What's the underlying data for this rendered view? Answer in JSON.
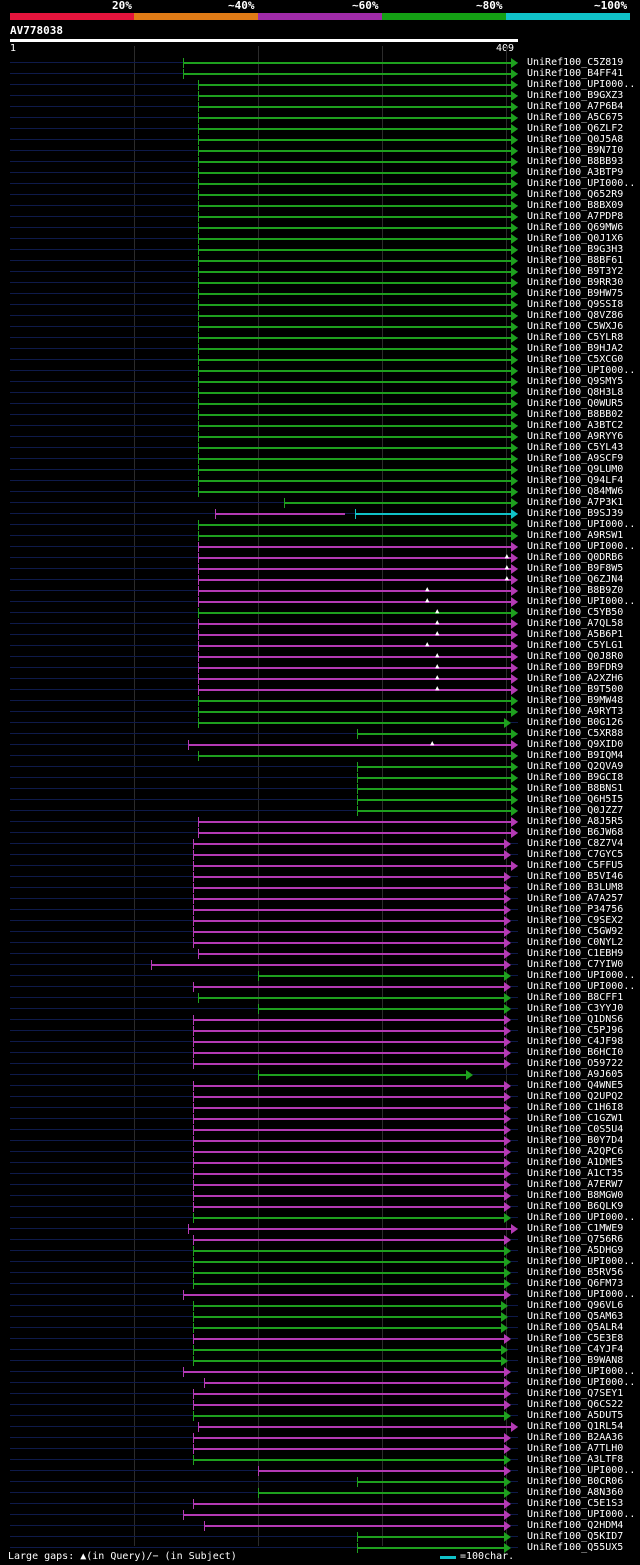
{
  "scale": {
    "labels": [
      "20%",
      "~40%",
      "~60%",
      "~80%",
      "~100%"
    ],
    "colors": [
      "#e4143c",
      "#e07b16",
      "#a02ba8",
      "#14a014",
      "#10c2c8"
    ]
  },
  "query": {
    "id": "AV778038",
    "start": "1",
    "end": "409",
    "length": 409
  },
  "colors": {
    "green": "#1ea01e",
    "magenta": "#b43ab4",
    "cyan": "#10c2c8",
    "background_line": "#0e1a4a"
  },
  "hits": [
    {
      "label": "UniRef100_C5Z819",
      "c": "g",
      "s": 140,
      "e": 406
    },
    {
      "label": "UniRef100_B4FF41",
      "c": "g",
      "s": 140,
      "e": 406
    },
    {
      "label": "UniRef100_UPI000..",
      "c": "g",
      "s": 152,
      "e": 406
    },
    {
      "label": "UniRef100_B9GXZ3",
      "c": "g",
      "s": 152,
      "e": 406
    },
    {
      "label": "UniRef100_A7P6B4",
      "c": "g",
      "s": 152,
      "e": 406
    },
    {
      "label": "UniRef100_A5C675",
      "c": "g",
      "s": 152,
      "e": 406
    },
    {
      "label": "UniRef100_Q6ZLF2",
      "c": "g",
      "s": 152,
      "e": 406
    },
    {
      "label": "UniRef100_Q0J5A8",
      "c": "g",
      "s": 152,
      "e": 406
    },
    {
      "label": "UniRef100_B9N7I0",
      "c": "g",
      "s": 152,
      "e": 406
    },
    {
      "label": "UniRef100_B8BB93",
      "c": "g",
      "s": 152,
      "e": 406
    },
    {
      "label": "UniRef100_A3BTP9",
      "c": "g",
      "s": 152,
      "e": 406
    },
    {
      "label": "UniRef100_UPI000..",
      "c": "g",
      "s": 152,
      "e": 406
    },
    {
      "label": "UniRef100_Q652R9",
      "c": "g",
      "s": 152,
      "e": 406
    },
    {
      "label": "UniRef100_B8BX09",
      "c": "g",
      "s": 152,
      "e": 406
    },
    {
      "label": "UniRef100_A7PDP8",
      "c": "g",
      "s": 152,
      "e": 406
    },
    {
      "label": "UniRef100_Q69MW6",
      "c": "g",
      "s": 152,
      "e": 406
    },
    {
      "label": "UniRef100_Q0J1X6",
      "c": "g",
      "s": 152,
      "e": 406
    },
    {
      "label": "UniRef100_B9G3H3",
      "c": "g",
      "s": 152,
      "e": 406
    },
    {
      "label": "UniRef100_B8BF61",
      "c": "g",
      "s": 152,
      "e": 406
    },
    {
      "label": "UniRef100_B9T3Y2",
      "c": "g",
      "s": 152,
      "e": 406
    },
    {
      "label": "UniRef100_B9RR30",
      "c": "g",
      "s": 152,
      "e": 406
    },
    {
      "label": "UniRef100_B9HW75",
      "c": "g",
      "s": 152,
      "e": 406
    },
    {
      "label": "UniRef100_Q9SSI8",
      "c": "g",
      "s": 152,
      "e": 406
    },
    {
      "label": "UniRef100_Q8VZ86",
      "c": "g",
      "s": 152,
      "e": 406
    },
    {
      "label": "UniRef100_C5WXJ6",
      "c": "g",
      "s": 152,
      "e": 406
    },
    {
      "label": "UniRef100_C5YLR8",
      "c": "g",
      "s": 152,
      "e": 406
    },
    {
      "label": "UniRef100_B9HJA2",
      "c": "g",
      "s": 152,
      "e": 406
    },
    {
      "label": "UniRef100_C5XCG0",
      "c": "g",
      "s": 152,
      "e": 406
    },
    {
      "label": "UniRef100_UPI000..",
      "c": "g",
      "s": 152,
      "e": 406
    },
    {
      "label": "UniRef100_Q9SMY5",
      "c": "g",
      "s": 152,
      "e": 406
    },
    {
      "label": "UniRef100_Q8H3L8",
      "c": "g",
      "s": 152,
      "e": 406
    },
    {
      "label": "UniRef100_Q0WUR5",
      "c": "g",
      "s": 152,
      "e": 406
    },
    {
      "label": "UniRef100_B8BB02",
      "c": "g",
      "s": 152,
      "e": 406
    },
    {
      "label": "UniRef100_A3BTC2",
      "c": "g",
      "s": 152,
      "e": 406
    },
    {
      "label": "UniRef100_A9RYY6",
      "c": "g",
      "s": 152,
      "e": 406
    },
    {
      "label": "UniRef100_C5YL43",
      "c": "g",
      "s": 152,
      "e": 406
    },
    {
      "label": "UniRef100_A9SCF9",
      "c": "g",
      "s": 152,
      "e": 406
    },
    {
      "label": "UniRef100_Q9LUM0",
      "c": "g",
      "s": 152,
      "e": 406
    },
    {
      "label": "UniRef100_Q94LF4",
      "c": "g",
      "s": 152,
      "e": 406
    },
    {
      "label": "UniRef100_Q84MW6",
      "c": "g",
      "s": 152,
      "e": 406
    },
    {
      "label": "UniRef100_A7P3K1",
      "c": "g",
      "s": 221,
      "e": 406
    },
    {
      "label": "UniRef100_B9SJ39",
      "c": "m",
      "s": 166,
      "e": 270,
      "c2": "c",
      "s2": 278,
      "e2": 406
    },
    {
      "label": "UniRef100_UPI000..",
      "c": "g",
      "s": 152,
      "e": 406
    },
    {
      "label": "UniRef100_A9RSW1",
      "c": "g",
      "s": 152,
      "e": 406
    },
    {
      "label": "UniRef100_UPI000..",
      "c": "m",
      "s": 152,
      "e": 406
    },
    {
      "label": "UniRef100_Q0DRB6",
      "c": "m",
      "s": 152,
      "e": 406,
      "gap": [
        400
      ]
    },
    {
      "label": "UniRef100_B9F8W5",
      "c": "m",
      "s": 152,
      "e": 406,
      "gap": [
        400
      ]
    },
    {
      "label": "UniRef100_Q6ZJN4",
      "c": "m",
      "s": 152,
      "e": 406,
      "gap": [
        400
      ]
    },
    {
      "label": "UniRef100_B8B9Z0",
      "c": "m",
      "s": 152,
      "e": 406,
      "gap": [
        336
      ]
    },
    {
      "label": "UniRef100_UPI000..",
      "c": "m",
      "s": 152,
      "e": 406,
      "gap": [
        336
      ]
    },
    {
      "label": "UniRef100_C5YB50",
      "c": "g",
      "s": 152,
      "e": 406,
      "gap": [
        344
      ]
    },
    {
      "label": "UniRef100_A7QL58",
      "c": "m",
      "s": 152,
      "e": 406,
      "gap": [
        344
      ]
    },
    {
      "label": "UniRef100_A5B6P1",
      "c": "m",
      "s": 152,
      "e": 406,
      "gap": [
        344
      ]
    },
    {
      "label": "UniRef100_C5YLG1",
      "c": "m",
      "s": 152,
      "e": 406,
      "gap": [
        336
      ]
    },
    {
      "label": "UniRef100_Q0J8R0",
      "c": "m",
      "s": 152,
      "e": 406,
      "gap": [
        344
      ]
    },
    {
      "label": "UniRef100_B9FDR9",
      "c": "m",
      "s": 152,
      "e": 406,
      "gap": [
        344
      ]
    },
    {
      "label": "UniRef100_A2XZH6",
      "c": "m",
      "s": 152,
      "e": 406,
      "gap": [
        344
      ]
    },
    {
      "label": "UniRef100_B9T500",
      "c": "m",
      "s": 152,
      "e": 406,
      "gap": [
        344
      ]
    },
    {
      "label": "UniRef100_B9MW48",
      "c": "g",
      "s": 152,
      "e": 406
    },
    {
      "label": "UniRef100_A9RYT3",
      "c": "g",
      "s": 152,
      "e": 406
    },
    {
      "label": "UniRef100_B0G126",
      "c": "g",
      "s": 152,
      "e": 400
    },
    {
      "label": "UniRef100_C5XR88",
      "c": "g",
      "s": 280,
      "e": 406
    },
    {
      "label": "UniRef100_Q9XID0",
      "c": "m",
      "s": 144,
      "e": 406,
      "gap": [
        340
      ]
    },
    {
      "label": "UniRef100_B9IQM4",
      "c": "g",
      "s": 152,
      "e": 406
    },
    {
      "label": "UniRef100_Q2QVA9",
      "c": "g",
      "s": 280,
      "e": 406
    },
    {
      "label": "UniRef100_B9GCI8",
      "c": "g",
      "s": 280,
      "e": 406
    },
    {
      "label": "UniRef100_B8BNS1",
      "c": "g",
      "s": 280,
      "e": 406
    },
    {
      "label": "UniRef100_Q6H5I5",
      "c": "g",
      "s": 280,
      "e": 406
    },
    {
      "label": "UniRef100_Q0JZZ7",
      "c": "g",
      "s": 280,
      "e": 406
    },
    {
      "label": "UniRef100_A8J5R5",
      "c": "m",
      "s": 152,
      "e": 406
    },
    {
      "label": "UniRef100_B6JW68",
      "c": "m",
      "s": 152,
      "e": 406
    },
    {
      "label": "UniRef100_C8Z7V4",
      "c": "m",
      "s": 148,
      "e": 400
    },
    {
      "label": "UniRef100_C7GYC5",
      "c": "m",
      "s": 148,
      "e": 400
    },
    {
      "label": "UniRef100_C5FFU5",
      "c": "m",
      "s": 148,
      "e": 406
    },
    {
      "label": "UniRef100_B5VI46",
      "c": "m",
      "s": 148,
      "e": 400
    },
    {
      "label": "UniRef100_B3LUM8",
      "c": "m",
      "s": 148,
      "e": 400
    },
    {
      "label": "UniRef100_A7A257",
      "c": "m",
      "s": 148,
      "e": 400
    },
    {
      "label": "UniRef100_P34756",
      "c": "m",
      "s": 148,
      "e": 400
    },
    {
      "label": "UniRef100_C9SEX2",
      "c": "m",
      "s": 148,
      "e": 400
    },
    {
      "label": "UniRef100_C5GW92",
      "c": "m",
      "s": 148,
      "e": 400
    },
    {
      "label": "UniRef100_C0NYL2",
      "c": "m",
      "s": 148,
      "e": 400
    },
    {
      "label": "UniRef100_C1EBH9",
      "c": "m",
      "s": 152,
      "e": 400
    },
    {
      "label": "UniRef100_C7YIW0",
      "c": "m",
      "s": 114,
      "e": 400
    },
    {
      "label": "UniRef100_UPI000..",
      "c": "g",
      "s": 200,
      "e": 400
    },
    {
      "label": "UniRef100_UPI000..",
      "c": "m",
      "s": 148,
      "e": 400
    },
    {
      "label": "UniRef100_B8CFF1",
      "c": "g",
      "s": 152,
      "e": 400
    },
    {
      "label": "UniRef100_C3YYJ0",
      "c": "g",
      "s": 200,
      "e": 400
    },
    {
      "label": "UniRef100_Q1DNS6",
      "c": "m",
      "s": 148,
      "e": 400
    },
    {
      "label": "UniRef100_C5PJ96",
      "c": "m",
      "s": 148,
      "e": 400
    },
    {
      "label": "UniRef100_C4JF98",
      "c": "m",
      "s": 148,
      "e": 400
    },
    {
      "label": "UniRef100_B6HCI0",
      "c": "m",
      "s": 148,
      "e": 400
    },
    {
      "label": "UniRef100_O59722",
      "c": "m",
      "s": 148,
      "e": 400
    },
    {
      "label": "UniRef100_A9J605",
      "c": "g",
      "s": 200,
      "e": 370
    },
    {
      "label": "UniRef100_Q4WNE5",
      "c": "m",
      "s": 148,
      "e": 400
    },
    {
      "label": "UniRef100_Q2UPQ2",
      "c": "m",
      "s": 148,
      "e": 400
    },
    {
      "label": "UniRef100_C1H6I8",
      "c": "m",
      "s": 148,
      "e": 400
    },
    {
      "label": "UniRef100_C1GZW1",
      "c": "m",
      "s": 148,
      "e": 400
    },
    {
      "label": "UniRef100_C0S5U4",
      "c": "m",
      "s": 148,
      "e": 400
    },
    {
      "label": "UniRef100_B0Y7D4",
      "c": "m",
      "s": 148,
      "e": 400
    },
    {
      "label": "UniRef100_A2QPC6",
      "c": "m",
      "s": 148,
      "e": 400
    },
    {
      "label": "UniRef100_A1DME5",
      "c": "m",
      "s": 148,
      "e": 400
    },
    {
      "label": "UniRef100_A1CT35",
      "c": "m",
      "s": 148,
      "e": 400
    },
    {
      "label": "UniRef100_A7ERW7",
      "c": "m",
      "s": 148,
      "e": 400
    },
    {
      "label": "UniRef100_B8MGW0",
      "c": "m",
      "s": 148,
      "e": 400
    },
    {
      "label": "UniRef100_B6QLK9",
      "c": "m",
      "s": 148,
      "e": 400
    },
    {
      "label": "UniRef100_UPI000..",
      "c": "g",
      "s": 148,
      "e": 400
    },
    {
      "label": "UniRef100_C1MWE9",
      "c": "m",
      "s": 144,
      "e": 406
    },
    {
      "label": "UniRef100_Q756R6",
      "c": "m",
      "s": 148,
      "e": 400
    },
    {
      "label": "UniRef100_A5DHG9",
      "c": "g",
      "s": 148,
      "e": 400
    },
    {
      "label": "UniRef100_UPI000..",
      "c": "g",
      "s": 148,
      "e": 400
    },
    {
      "label": "UniRef100_B5RV56",
      "c": "g",
      "s": 148,
      "e": 400
    },
    {
      "label": "UniRef100_Q6FM73",
      "c": "g",
      "s": 148,
      "e": 400
    },
    {
      "label": "UniRef100_UPI000..",
      "c": "m",
      "s": 140,
      "e": 400
    },
    {
      "label": "UniRef100_Q96VL6",
      "c": "g",
      "s": 148,
      "e": 398
    },
    {
      "label": "UniRef100_Q5AM63",
      "c": "g",
      "s": 148,
      "e": 398
    },
    {
      "label": "UniRef100_Q5ALR4",
      "c": "g",
      "s": 148,
      "e": 398
    },
    {
      "label": "UniRef100_C5E3E8",
      "c": "m",
      "s": 148,
      "e": 400
    },
    {
      "label": "UniRef100_C4YJF4",
      "c": "g",
      "s": 148,
      "e": 398
    },
    {
      "label": "UniRef100_B9WAN8",
      "c": "g",
      "s": 148,
      "e": 398
    },
    {
      "label": "UniRef100_UPI000..",
      "c": "m",
      "s": 140,
      "e": 400
    },
    {
      "label": "UniRef100_UPI000..",
      "c": "m",
      "s": 157,
      "e": 400
    },
    {
      "label": "UniRef100_Q7SEY1",
      "c": "m",
      "s": 148,
      "e": 400
    },
    {
      "label": "UniRef100_Q6CS22",
      "c": "m",
      "s": 148,
      "e": 400
    },
    {
      "label": "UniRef100_A5DUT5",
      "c": "g",
      "s": 148,
      "e": 400
    },
    {
      "label": "UniRef100_Q1RL54",
      "c": "m",
      "s": 152,
      "e": 406
    },
    {
      "label": "UniRef100_B2AA36",
      "c": "m",
      "s": 148,
      "e": 400
    },
    {
      "label": "UniRef100_A7TLH0",
      "c": "m",
      "s": 148,
      "e": 400
    },
    {
      "label": "UniRef100_A3LTF8",
      "c": "g",
      "s": 148,
      "e": 400
    },
    {
      "label": "UniRef100_UPI000..",
      "c": "m",
      "s": 200,
      "e": 400
    },
    {
      "label": "UniRef100_B0CR06",
      "c": "g",
      "s": 280,
      "e": 400
    },
    {
      "label": "UniRef100_A8N360",
      "c": "g",
      "s": 200,
      "e": 400
    },
    {
      "label": "UniRef100_C5E1S3",
      "c": "m",
      "s": 148,
      "e": 400
    },
    {
      "label": "UniRef100_UPI000..",
      "c": "m",
      "s": 140,
      "e": 400
    },
    {
      "label": "UniRef100_Q2HDM4",
      "c": "m",
      "s": 157,
      "e": 400
    },
    {
      "label": "UniRef100_Q5KID7",
      "c": "g",
      "s": 280,
      "e": 400
    },
    {
      "label": "UniRef100_Q55UX5",
      "c": "g",
      "s": 280,
      "e": 400
    }
  ],
  "footer": {
    "large_gaps": "Large gaps: ▲(in Query)/− (in Subject)",
    "scale_note": "=100char."
  }
}
